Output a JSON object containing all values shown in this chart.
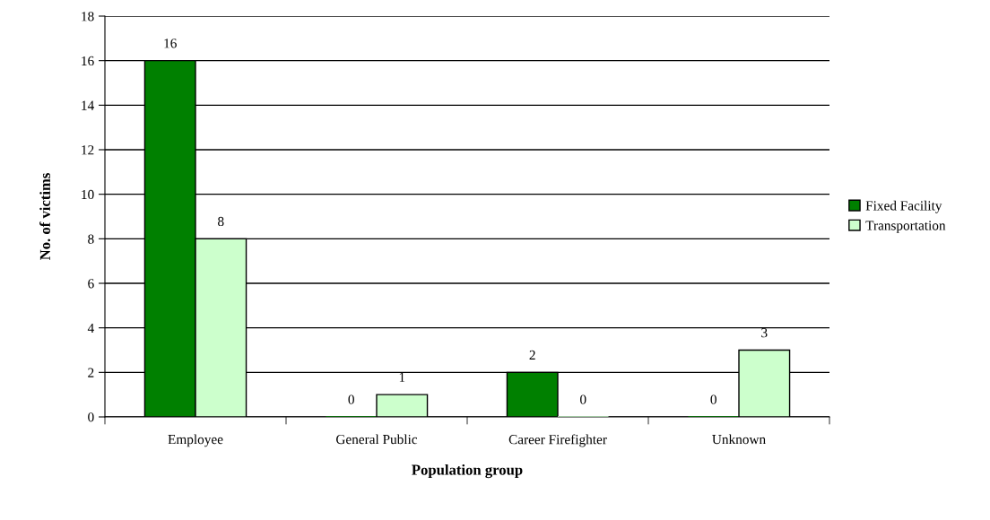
{
  "chart_data": {
    "type": "bar",
    "xlabel": "Population group",
    "ylabel": "No. of victims",
    "categories": [
      "Employee",
      "General Public",
      "Career Firefighter",
      "Unknown"
    ],
    "series": [
      {
        "name": "Fixed Facility",
        "color": "#008000",
        "values": [
          16,
          0,
          2,
          0
        ]
      },
      {
        "name": "Transportation",
        "color": "#ccffcc",
        "values": [
          8,
          1,
          0,
          3
        ]
      }
    ],
    "ylim": [
      0,
      18
    ],
    "yticks": [
      0,
      2,
      4,
      6,
      8,
      10,
      12,
      14,
      16,
      18
    ],
    "grid": "y",
    "legend": "right",
    "data_labels": true
  }
}
